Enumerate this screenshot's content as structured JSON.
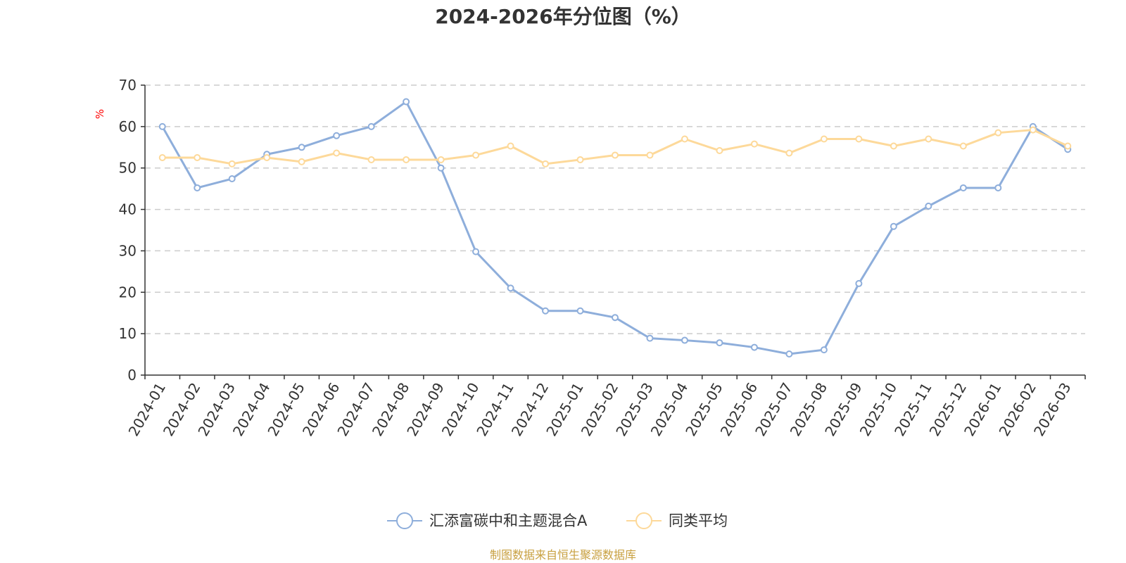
{
  "chart_data": {
    "type": "line",
    "title": "2024-2026年分位图（%）",
    "ylabel": "%",
    "ylim": [
      0,
      70
    ],
    "yticks": [
      0,
      10,
      20,
      30,
      40,
      50,
      60,
      70
    ],
    "grid": true,
    "legend_position": "bottom",
    "categories": [
      "2024-01",
      "2024-02",
      "2024-03",
      "2024-04",
      "2024-05",
      "2024-06",
      "2024-07",
      "2024-08",
      "2024-09",
      "2024-10",
      "2024-11",
      "2024-12",
      "2025-01",
      "2025-02",
      "2025-03",
      "2025-04",
      "2025-05",
      "2025-06",
      "2025-07",
      "2025-08",
      "2025-09",
      "2025-10",
      "2025-11",
      "2025-12",
      "2026-01",
      "2026-02",
      "2026-03"
    ],
    "series": [
      {
        "name": "汇添富碳中和主题混合A",
        "color": "#8eaedb",
        "values": [
          60,
          45.2,
          47.4,
          53.3,
          55,
          57.8,
          60,
          66,
          50,
          29.8,
          21,
          15.5,
          15.5,
          13.9,
          8.9,
          8.4,
          7.8,
          6.7,
          5.1,
          6.1,
          22.1,
          35.9,
          40.8,
          45.2,
          45.2,
          60,
          54.5
        ]
      },
      {
        "name": "同类平均",
        "color": "#fdd99a",
        "values": [
          52.5,
          52.5,
          51,
          52.5,
          51.5,
          53.6,
          52,
          52,
          52,
          53.1,
          55.3,
          51,
          52,
          53.1,
          53.1,
          57,
          54.2,
          55.8,
          53.6,
          57,
          57,
          55.3,
          57,
          55.3,
          58.5,
          59.2,
          55.3
        ]
      }
    ]
  },
  "source": {
    "text": "制图数据来自恒生聚源数据库",
    "color": "#c8a040"
  },
  "unit_color": "#ff0000"
}
